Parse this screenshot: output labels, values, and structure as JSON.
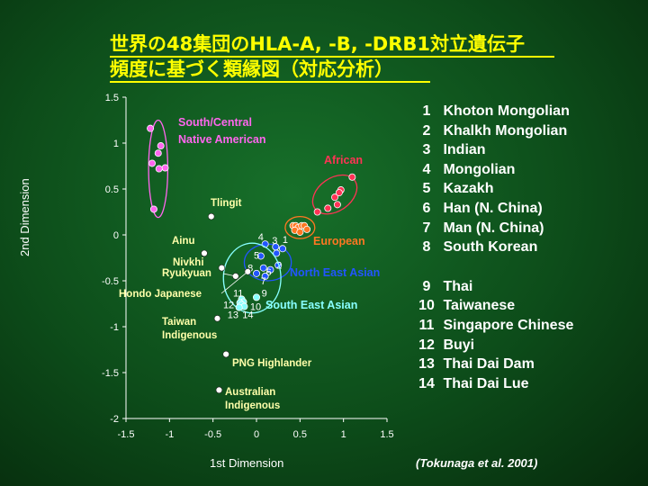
{
  "title_line1": "世界の48集団のHLA-A, -B, -DRB1対立遺伝子",
  "title_line2": "頻度に基づく類縁図（対応分析）",
  "citation": "(Tokunaga et al. 2001)",
  "legend": [
    {
      "num": "1",
      "name": "Khoton Mongolian"
    },
    {
      "num": "2",
      "name": "Khalkh Mongolian"
    },
    {
      "num": "3",
      "name": "Indian"
    },
    {
      "num": "4",
      "name": "Mongolian"
    },
    {
      "num": "5",
      "name": "Kazakh"
    },
    {
      "num": "6",
      "name": "Han (N. China)"
    },
    {
      "num": "7",
      "name": "Man (N. China)"
    },
    {
      "num": "8",
      "name": "South Korean"
    },
    {
      "num": "9",
      "name": "Thai"
    },
    {
      "num": "10",
      "name": "Taiwanese"
    },
    {
      "num": "11",
      "name": "Singapore Chinese"
    },
    {
      "num": "12",
      "name": "Buyi"
    },
    {
      "num": "13",
      "name": "Thai Dai Dam"
    },
    {
      "num": "14",
      "name": "Thai Dai Lue"
    }
  ],
  "colors": {
    "title": "#ffff00",
    "native_american": "#ff66ee",
    "african": "#ff3355",
    "european": "#ff7722",
    "north_east_asian": "#2255ff",
    "south_east_asian": "#88ffff",
    "named": "#ffffaa"
  },
  "chart_data": {
    "type": "scatter",
    "xlabel": "1st Dimension",
    "ylabel": "2nd  Dimension",
    "xlim": [
      -1.5,
      1.5
    ],
    "ylim": [
      -2,
      1.5
    ],
    "xticks": [
      "-1.5",
      "-1",
      "-0.5",
      "0",
      "0.5",
      "1",
      "1.5"
    ],
    "xtick_values": [
      -1.5,
      -1,
      -0.5,
      0,
      0.5,
      1,
      1.5
    ],
    "yticks": [
      "1.5",
      "1",
      "0.5",
      "0",
      "-0.5",
      "-1",
      "-1.5",
      "-2"
    ],
    "ytick_values": [
      1.5,
      1,
      0.5,
      0,
      -0.5,
      -1,
      -1.5,
      -2
    ],
    "groups": [
      {
        "name": "South/Central\nNative American",
        "color": "native_american",
        "points": [
          [
            -1.22,
            1.16
          ],
          [
            -1.1,
            0.97
          ],
          [
            -1.13,
            0.89
          ],
          [
            -1.2,
            0.78
          ],
          [
            -1.05,
            0.73
          ],
          [
            -1.12,
            0.72
          ],
          [
            -1.18,
            0.28
          ]
        ],
        "ellipse": {
          "cx": -1.13,
          "cy": 0.72,
          "rx": 0.11,
          "ry": 0.53
        }
      },
      {
        "name": "African",
        "color": "african",
        "points": [
          [
            1.1,
            0.63
          ],
          [
            0.97,
            0.49
          ],
          [
            0.95,
            0.46
          ],
          [
            0.9,
            0.41
          ],
          [
            0.93,
            0.33
          ],
          [
            0.82,
            0.29
          ],
          [
            0.7,
            0.25
          ]
        ],
        "ellipse": {
          "cx": 0.9,
          "cy": 0.44,
          "rx": 0.28,
          "ry": 0.18,
          "rot": -35
        }
      },
      {
        "name": "European",
        "color": "european",
        "points": [
          [
            0.42,
            0.1
          ],
          [
            0.45,
            0.1
          ],
          [
            0.48,
            0.08
          ],
          [
            0.52,
            0.1
          ],
          [
            0.55,
            0.1
          ],
          [
            0.44,
            0.05
          ],
          [
            0.5,
            0.03
          ],
          [
            0.58,
            0.06
          ]
        ],
        "ellipse": {
          "cx": 0.5,
          "cy": 0.08,
          "rx": 0.17,
          "ry": 0.12
        }
      },
      {
        "name": "North East Asian",
        "color": "north_east_asian",
        "points": [
          [
            0.1,
            -0.1
          ],
          [
            0.22,
            -0.13
          ],
          [
            0.3,
            -0.15
          ],
          [
            0.23,
            -0.2
          ],
          [
            0.05,
            -0.23
          ],
          [
            0.08,
            -0.36
          ],
          [
            0.0,
            -0.42
          ],
          [
            0.16,
            -0.38
          ],
          [
            0.25,
            -0.33
          ],
          [
            0.1,
            -0.45
          ]
        ],
        "labels": [
          [
            "4",
            0.05,
            -0.02
          ],
          [
            "3",
            0.21,
            -0.06
          ],
          [
            "1",
            0.33,
            -0.05
          ],
          [
            "5",
            0.0,
            -0.22
          ],
          [
            "2",
            0.26,
            -0.33
          ],
          [
            "8",
            -0.07,
            -0.36
          ],
          [
            "6",
            0.14,
            -0.4
          ],
          [
            "7",
            0.08,
            -0.5
          ]
        ],
        "ellipse": {
          "cx": 0.13,
          "cy": -0.3,
          "rx": 0.27,
          "ry": 0.2
        }
      },
      {
        "name": "South East Asian",
        "color": "south_east_asian",
        "points": [
          [
            -0.17,
            -0.7
          ],
          [
            -0.15,
            -0.73
          ],
          [
            -0.19,
            -0.74
          ],
          [
            -0.17,
            -0.76
          ],
          [
            -0.14,
            -0.78
          ],
          [
            -0.2,
            -0.79
          ],
          [
            0.0,
            -0.68
          ]
        ],
        "labels": [
          [
            "11",
            -0.21,
            -0.63
          ],
          [
            "12",
            -0.32,
            -0.76
          ],
          [
            "9",
            0.09,
            -0.63
          ],
          [
            "10",
            -0.01,
            -0.78
          ],
          [
            "13",
            -0.27,
            -0.87
          ],
          [
            "14",
            -0.1,
            -0.87
          ]
        ],
        "ellipse": {
          "cx": -0.05,
          "cy": -0.47,
          "rx": 0.33,
          "ry": 0.38
        }
      }
    ],
    "named_points": [
      {
        "name": "Tlingit",
        "x": -0.52,
        "y": 0.2
      },
      {
        "name": "Ainu",
        "x": -0.6,
        "y": -0.2
      },
      {
        "name": "Nivkhi",
        "x": -0.4,
        "y": -0.36
      },
      {
        "name": "Ryukyuan",
        "x": -0.24,
        "y": -0.45
      },
      {
        "name": "Hondo Japanese",
        "x": -0.1,
        "y": -0.4
      },
      {
        "name": "Taiwan\nIndigenous",
        "x": -0.45,
        "y": -0.91
      },
      {
        "name": "PNG Highlander",
        "x": -0.35,
        "y": -1.3
      },
      {
        "name": "Australian\nIndigenous",
        "x": -0.43,
        "y": -1.69
      }
    ]
  }
}
